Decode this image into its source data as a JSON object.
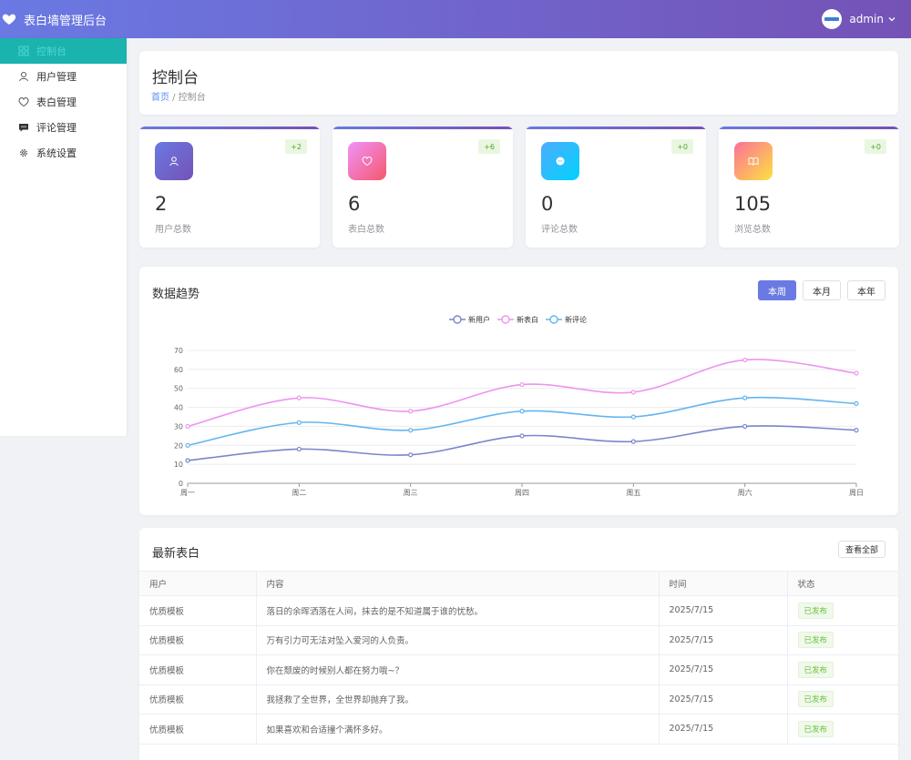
{
  "header": {
    "title": "表白墙管理后台",
    "user": "admin"
  },
  "sidebar": {
    "items": [
      {
        "label": "控制台",
        "icon": "dashboard-icon",
        "active": true
      },
      {
        "label": "用户管理",
        "icon": "user-icon"
      },
      {
        "label": "表白管理",
        "icon": "heart-icon"
      },
      {
        "label": "评论管理",
        "icon": "comment-icon"
      },
      {
        "label": "系统设置",
        "icon": "gear-icon"
      }
    ]
  },
  "page": {
    "title": "控制台",
    "breadcrumb_home": "首页",
    "breadcrumb_sep": " / ",
    "breadcrumb_current": "控制台"
  },
  "stats": [
    {
      "value": "2",
      "label": "用户总数",
      "delta": "+2",
      "icon": "user-icon",
      "colors": [
        "#6a79e3",
        "#7552b6"
      ]
    },
    {
      "value": "6",
      "label": "表白总数",
      "delta": "+6",
      "icon": "heart-icon",
      "colors": [
        "#f093fb",
        "#f5576c"
      ]
    },
    {
      "value": "0",
      "label": "评论总数",
      "delta": "+0",
      "icon": "comment-icon",
      "colors": [
        "#4facfe",
        "#00d2fe"
      ]
    },
    {
      "value": "105",
      "label": "浏览总数",
      "delta": "+0",
      "icon": "book-icon",
      "colors": [
        "#fa709a",
        "#fee140"
      ]
    }
  ],
  "chart": {
    "title": "数据趋势",
    "ranges": [
      "本周",
      "本月",
      "本年"
    ],
    "active_range": "本周"
  },
  "chart_data": {
    "type": "line",
    "categories": [
      "周一",
      "周二",
      "周三",
      "周四",
      "周五",
      "周六",
      "周日"
    ],
    "ylim": [
      0,
      70
    ],
    "yticks": [
      0,
      10,
      20,
      30,
      40,
      50,
      60,
      70
    ],
    "legend_position": "top-center",
    "series": [
      {
        "name": "新用户",
        "color": "#7986cb",
        "values": [
          12,
          18,
          15,
          25,
          22,
          30,
          28
        ]
      },
      {
        "name": "新表白",
        "color": "#ee93ef",
        "values": [
          30,
          45,
          38,
          52,
          48,
          65,
          58
        ]
      },
      {
        "name": "新评论",
        "color": "#64b5ef",
        "values": [
          20,
          32,
          28,
          38,
          35,
          45,
          42
        ]
      }
    ]
  },
  "table": {
    "title": "最新表白",
    "view_all": "查看全部",
    "columns": [
      "用户",
      "内容",
      "时间",
      "状态"
    ],
    "rows": [
      {
        "user": "优质模板",
        "content": "落日的余晖洒落在人间，抹去的是不知道属于谁的忧愁。",
        "time": "2025/7/15",
        "status": "已发布"
      },
      {
        "user": "优质模板",
        "content": "万有引力可无法对坠入爱河的人负责。",
        "time": "2025/7/15",
        "status": "已发布"
      },
      {
        "user": "优质模板",
        "content": "你在颓废的时候别人都在努力哦~？",
        "time": "2025/7/15",
        "status": "已发布"
      },
      {
        "user": "优质模板",
        "content": "我拯救了全世界，全世界却抛弃了我。",
        "time": "2025/7/15",
        "status": "已发布"
      },
      {
        "user": "优质模板",
        "content": "如果喜欢和合适撞个满怀多好。",
        "time": "2025/7/15",
        "status": "已发布"
      }
    ]
  }
}
